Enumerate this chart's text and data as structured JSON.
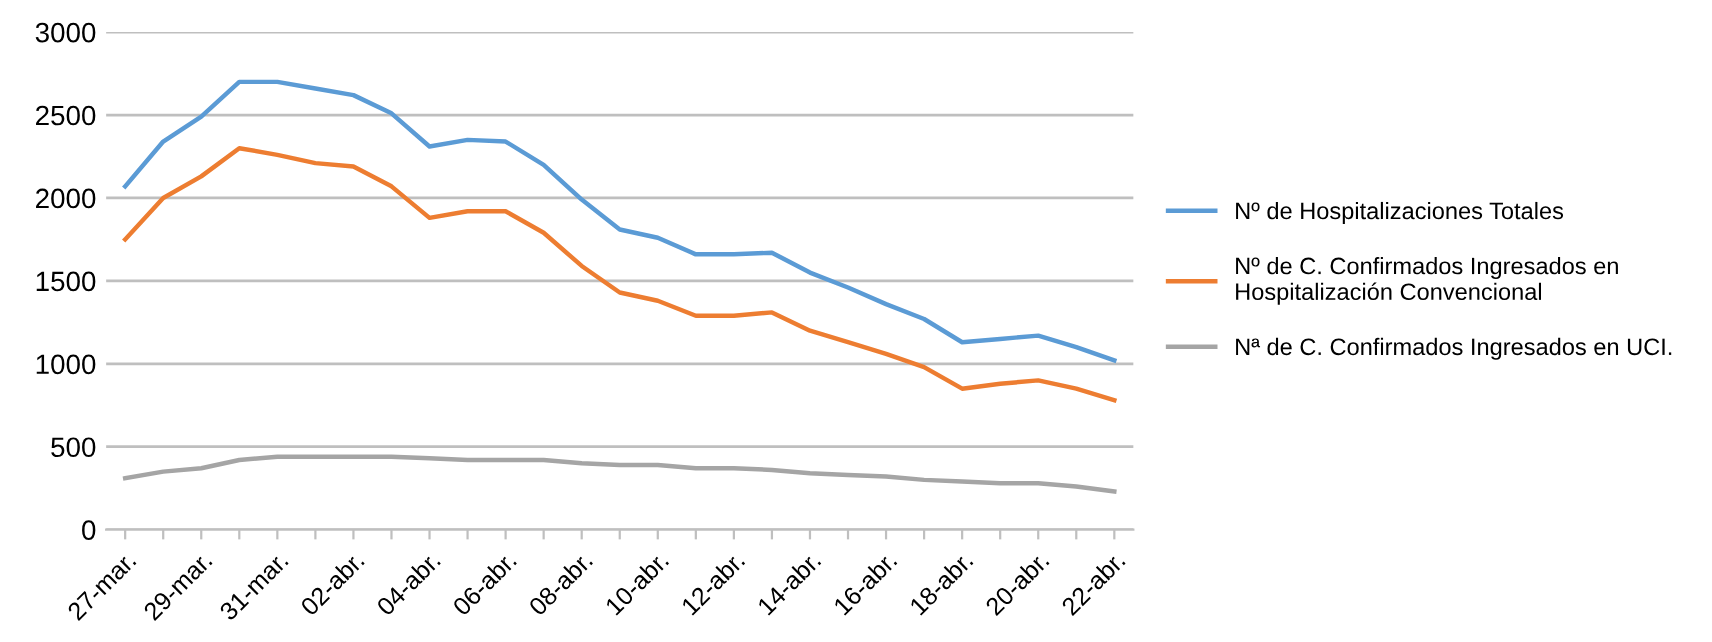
{
  "chart_data": {
    "type": "line",
    "categories": [
      "27-mar.",
      null,
      "29-mar.",
      null,
      "31-mar.",
      null,
      "02-abr.",
      null,
      "04-abr.",
      null,
      "06-abr.",
      null,
      "08-abr.",
      null,
      "10-abr.",
      null,
      "12-abr.",
      null,
      "14-abr.",
      null,
      "16-abr.",
      null,
      "18-abr.",
      null,
      "20-abr.",
      null,
      "22-abr."
    ],
    "series": [
      {
        "name": "Nº de Hospitalizaciones Totales",
        "color": "#5b9bd5",
        "values": [
          2070,
          2340,
          2490,
          2700,
          2700,
          2660,
          2620,
          2510,
          2310,
          2350,
          2340,
          2200,
          1990,
          1810,
          1760,
          1660,
          1660,
          1670,
          1550,
          1460,
          1360,
          1270,
          1130,
          1150,
          1170,
          1100,
          1020
        ]
      },
      {
        "name": "Nº de C. Confirmados Ingresados en\nHospitalización Convencional",
        "color": "#ed7d31",
        "values": [
          1750,
          2000,
          2130,
          2300,
          2260,
          2210,
          2190,
          2070,
          1880,
          1920,
          1920,
          1790,
          1590,
          1430,
          1380,
          1290,
          1290,
          1310,
          1200,
          1130,
          1060,
          980,
          850,
          880,
          900,
          850,
          780
        ]
      },
      {
        "name": "Nª de C. Confirmados Ingresados en UCI.",
        "color": "#a5a5a5",
        "values": [
          310,
          350,
          370,
          420,
          440,
          440,
          440,
          440,
          430,
          420,
          420,
          420,
          400,
          390,
          390,
          370,
          370,
          360,
          340,
          330,
          320,
          300,
          290,
          280,
          280,
          260,
          230
        ]
      }
    ],
    "ylim": [
      0,
      3000
    ],
    "yticks": [
      0,
      500,
      1000,
      1500,
      2000,
      2500,
      3000
    ],
    "grid": "y",
    "legend": "right",
    "marker": "none",
    "line_style": "solid"
  }
}
